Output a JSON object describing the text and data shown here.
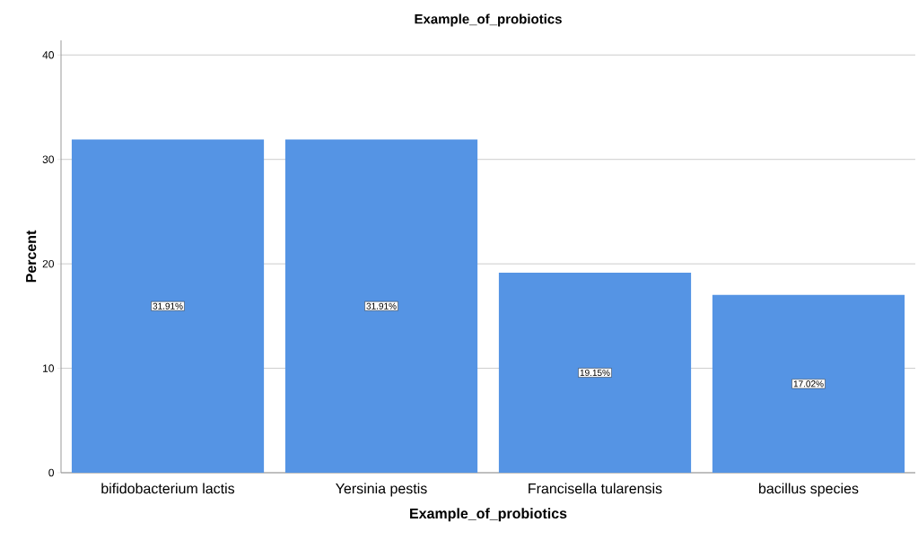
{
  "chart_data": {
    "type": "bar",
    "title": "Example_of_probiotics",
    "xlabel": "Example_of_probiotics",
    "ylabel": "Percent",
    "categories": [
      "bifidobacterium lactis",
      "Yersinia pestis",
      "Francisella tularensis",
      "bacillus species"
    ],
    "values": [
      31.91,
      31.91,
      19.15,
      17.02
    ],
    "value_labels": [
      "31.91%",
      "31.91%",
      "19.15%",
      "17.02%"
    ],
    "color": "#5594e4",
    "ylim": [
      0,
      41.4
    ],
    "yticks": [
      0,
      10,
      20,
      30,
      40
    ],
    "grid": "y"
  }
}
